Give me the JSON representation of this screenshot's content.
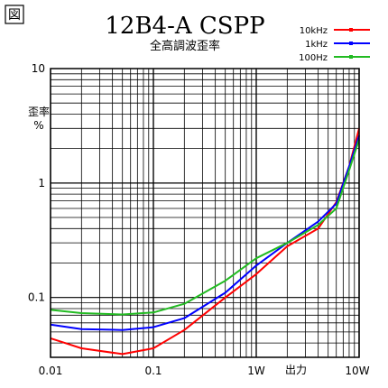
{
  "badge": "図",
  "chart_data": {
    "type": "line",
    "title": "12B4-A CSPP",
    "subtitle": "全高調波歪率",
    "xlabel": "出力",
    "ylabel": "歪率\n%",
    "x_scale": "log",
    "y_scale": "log",
    "xlim": [
      0.01,
      10
    ],
    "ylim": [
      0.03,
      10
    ],
    "x_tick_labels": [
      {
        "value": 0.01,
        "label": "0.01"
      },
      {
        "value": 0.1,
        "label": "0.1"
      },
      {
        "value": 1,
        "label": "1W"
      },
      {
        "value": 10,
        "label": "10W"
      }
    ],
    "y_tick_labels": [
      {
        "value": 10,
        "label": "10"
      },
      {
        "value": 1,
        "label": "1"
      },
      {
        "value": 0.1,
        "label": "0.1"
      }
    ],
    "grid": true,
    "legend_position": "top-right",
    "series": [
      {
        "name": "10kHz",
        "color": "#ff0000",
        "x": [
          0.01,
          0.02,
          0.05,
          0.1,
          0.2,
          0.5,
          1,
          2,
          4,
          6,
          8,
          10
        ],
        "y": [
          0.044,
          0.036,
          0.032,
          0.036,
          0.052,
          0.1,
          0.16,
          0.28,
          0.4,
          0.68,
          1.4,
          3.0
        ]
      },
      {
        "name": "1kHz",
        "color": "#0000ff",
        "x": [
          0.01,
          0.02,
          0.05,
          0.1,
          0.2,
          0.5,
          1,
          2,
          4,
          6,
          8,
          10
        ],
        "y": [
          0.058,
          0.053,
          0.052,
          0.055,
          0.066,
          0.11,
          0.19,
          0.3,
          0.46,
          0.66,
          1.4,
          2.6
        ]
      },
      {
        "name": "100Hz",
        "color": "#22bb22",
        "x": [
          0.01,
          0.02,
          0.05,
          0.1,
          0.2,
          0.5,
          1,
          2,
          4,
          6,
          8,
          10
        ],
        "y": [
          0.078,
          0.073,
          0.071,
          0.074,
          0.088,
          0.14,
          0.22,
          0.3,
          0.43,
          0.6,
          1.3,
          2.4
        ]
      }
    ]
  }
}
